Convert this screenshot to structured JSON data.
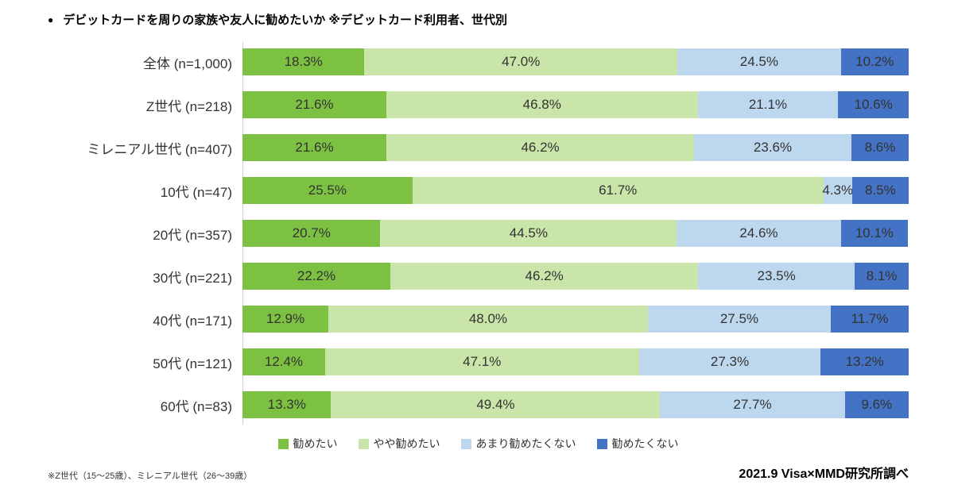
{
  "title": {
    "bullet": "●",
    "text": "デビットカードを周りの家族や友人に勧めたいか ※デビットカード利用者、世代別"
  },
  "chart_data": {
    "type": "bar",
    "variant": "horizontal-stacked",
    "stacked": true,
    "unit": "%",
    "xlim": [
      0,
      100
    ],
    "legend_position": "bottom",
    "categories": [
      "全体 (n=1,000)",
      "Z世代 (n=218)",
      "ミレニアル世代 (n=407)",
      "10代 (n=47)",
      "20代 (n=357)",
      "30代 (n=221)",
      "40代 (n=171)",
      "50代 (n=121)",
      "60代 (n=83)"
    ],
    "series": [
      {
        "name": "勧めたい",
        "color": "#7DC142",
        "values": [
          18.3,
          21.6,
          21.6,
          25.5,
          20.7,
          22.2,
          12.9,
          12.4,
          13.3
        ]
      },
      {
        "name": "やや勧めたい",
        "color": "#C9E5A9",
        "values": [
          47.0,
          46.8,
          46.2,
          61.7,
          44.5,
          46.2,
          48.0,
          47.1,
          49.4
        ]
      },
      {
        "name": "あまり勧めたくない",
        "color": "#BDD7EE",
        "values": [
          24.5,
          21.1,
          23.6,
          4.3,
          24.6,
          23.5,
          27.5,
          27.3,
          27.7
        ]
      },
      {
        "name": "勧めたくない",
        "color": "#4472C4",
        "values": [
          10.2,
          10.6,
          8.6,
          8.5,
          10.1,
          8.1,
          11.7,
          13.2,
          9.6
        ]
      }
    ]
  },
  "footnote": "※Z世代（15～25歳）、ミレニアル世代（26～39歳）",
  "source": "2021.9 Visa×MMD研究所調べ"
}
